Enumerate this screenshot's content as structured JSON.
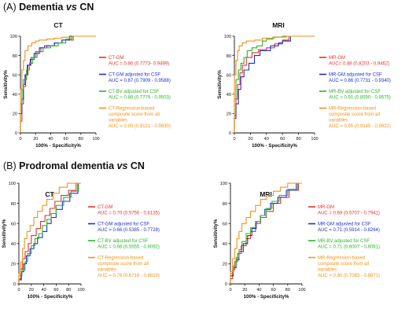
{
  "sections": [
    {
      "paren": "(A)",
      "lead": "Dementia",
      "vs": "vs",
      "tail": "CN"
    },
    {
      "paren": "(B)",
      "lead": "Prodromal dementia",
      "vs": "vs",
      "tail": "CN"
    }
  ],
  "colors": {
    "red": "#e8332a",
    "blue": "#1f2fd0",
    "green": "#2bb52b",
    "orange": "#f39214"
  },
  "chart_data": [
    {
      "type": "line",
      "title": "CT",
      "xlabel": "100% - Specificity%",
      "ylabel": "Sensitivity%",
      "xlim": [
        0,
        100
      ],
      "ylim": [
        0,
        100
      ],
      "xticks": [
        0,
        20,
        40,
        60,
        80,
        100
      ],
      "yticks": [
        0,
        20,
        40,
        60,
        80,
        100
      ],
      "series": [
        {
          "name": "CT-GM",
          "auc": "AUC = 0.86 (0.7773- 0.9499)",
          "color": "red",
          "x": [
            0,
            0,
            2,
            2,
            4,
            4,
            7,
            7,
            10,
            10,
            14,
            14,
            20,
            20,
            27,
            27,
            35,
            35,
            45,
            45,
            55,
            55,
            70,
            70,
            100
          ],
          "y": [
            0,
            12,
            12,
            30,
            30,
            48,
            48,
            60,
            60,
            70,
            70,
            78,
            78,
            84,
            84,
            88,
            88,
            90,
            90,
            93,
            93,
            96,
            96,
            100,
            100
          ]
        },
        {
          "name": "CT-GM adjusted for CSF",
          "auc": "AUC = 0.87 (0.7909 - 0.9588)",
          "color": "blue",
          "x": [
            0,
            0,
            2,
            2,
            4,
            4,
            6,
            6,
            9,
            9,
            13,
            13,
            18,
            18,
            25,
            25,
            32,
            32,
            45,
            45,
            55,
            55,
            65,
            65,
            100
          ],
          "y": [
            0,
            20,
            20,
            35,
            35,
            50,
            50,
            60,
            60,
            70,
            70,
            76,
            76,
            82,
            82,
            88,
            88,
            90,
            90,
            93,
            93,
            96,
            96,
            100,
            100
          ]
        },
        {
          "name": "CT-BV adjusted for CSF",
          "auc": "AUC = 0.88 (0.7779 - 0.9503)",
          "color": "green",
          "x": [
            0,
            0,
            2,
            2,
            4,
            4,
            8,
            8,
            12,
            12,
            16,
            16,
            22,
            22,
            30,
            30,
            40,
            40,
            50,
            50,
            60,
            60,
            68,
            68,
            100
          ],
          "y": [
            0,
            30,
            30,
            45,
            45,
            55,
            55,
            65,
            65,
            72,
            72,
            78,
            78,
            84,
            84,
            88,
            88,
            90,
            90,
            93,
            93,
            97,
            97,
            100,
            100
          ]
        },
        {
          "name": "CT-Regression-based composite score from all variables",
          "auc": "AUC = 0.95 (0.9121 - 0.9930)",
          "color": "orange",
          "x": [
            0,
            0,
            2,
            2,
            4,
            4,
            6,
            6,
            10,
            10,
            15,
            15,
            20,
            20,
            25,
            25,
            35,
            35,
            45,
            45,
            55,
            55,
            70,
            70,
            100
          ],
          "y": [
            0,
            45,
            45,
            65,
            65,
            75,
            75,
            85,
            85,
            90,
            90,
            93,
            93,
            95,
            95,
            96,
            96,
            97,
            97,
            98,
            98,
            99,
            99,
            100,
            100
          ]
        }
      ]
    },
    {
      "type": "line",
      "title": "MRI",
      "xlabel": "100% - Specificity%",
      "ylabel": "Sensitivity%",
      "xlim": [
        0,
        100
      ],
      "ylim": [
        0,
        100
      ],
      "xticks": [
        0,
        20,
        40,
        60,
        80,
        100
      ],
      "yticks": [
        0,
        20,
        40,
        60,
        80,
        100
      ],
      "series": [
        {
          "name": "MR-GM",
          "auc": "AUC= 0.88 (0.8203 - 0.9462)",
          "color": "red",
          "x": [
            0,
            0,
            2,
            2,
            4,
            4,
            7,
            7,
            10,
            10,
            15,
            15,
            22,
            22,
            30,
            30,
            40,
            40,
            50,
            50,
            60,
            60,
            68,
            68,
            100
          ],
          "y": [
            0,
            18,
            18,
            35,
            35,
            50,
            50,
            62,
            62,
            70,
            70,
            78,
            78,
            83,
            83,
            86,
            86,
            88,
            88,
            92,
            92,
            96,
            96,
            100,
            100
          ]
        },
        {
          "name": "MR-GM adjusted for CSF",
          "auc": "AUC = 0.86 (0.7731 - 0.9340)",
          "color": "blue",
          "x": [
            0,
            0,
            2,
            2,
            5,
            5,
            8,
            8,
            12,
            12,
            18,
            18,
            25,
            25,
            32,
            32,
            45,
            45,
            55,
            55,
            60,
            60,
            70,
            70,
            100
          ],
          "y": [
            0,
            15,
            15,
            30,
            30,
            45,
            45,
            58,
            58,
            65,
            65,
            72,
            72,
            80,
            80,
            85,
            85,
            90,
            90,
            93,
            93,
            95,
            95,
            100,
            100
          ]
        },
        {
          "name": "MR-BV adjusted for CSF",
          "auc": "AUC = 0.91 (0.8590 - 0.9575)",
          "color": "green",
          "x": [
            0,
            0,
            2,
            2,
            5,
            5,
            8,
            8,
            12,
            12,
            16,
            16,
            22,
            22,
            28,
            28,
            35,
            35,
            40,
            40,
            48,
            48,
            60,
            60,
            100
          ],
          "y": [
            0,
            35,
            35,
            55,
            55,
            65,
            65,
            72,
            72,
            78,
            78,
            85,
            85,
            88,
            88,
            90,
            90,
            95,
            95,
            97,
            97,
            99,
            99,
            100,
            100
          ]
        },
        {
          "name": "MR-Regression-based composite score from all variables",
          "auc": "AUC = 0.95 (0.9145 - 0.9922)",
          "color": "orange",
          "x": [
            0,
            0,
            2,
            2,
            4,
            4,
            6,
            6,
            10,
            10,
            15,
            15,
            25,
            25,
            35,
            35,
            50,
            50,
            65,
            65,
            100
          ],
          "y": [
            0,
            60,
            60,
            75,
            75,
            85,
            85,
            90,
            90,
            93,
            93,
            95,
            95,
            96,
            96,
            98,
            98,
            99,
            99,
            100,
            100
          ]
        }
      ]
    },
    {
      "type": "line",
      "title": "CT",
      "xlabel": "100% - Specificity%",
      "ylabel": "Sensitivity%",
      "xlim": [
        0,
        100
      ],
      "ylim": [
        0,
        100
      ],
      "xticks": [
        0,
        20,
        40,
        60,
        80,
        100
      ],
      "yticks": [
        0,
        20,
        40,
        60,
        80,
        100
      ],
      "series": [
        {
          "name": "CT-GM",
          "auc": "AUC = 0.70 (0.5756 - 0.8135)",
          "color": "red",
          "x": [
            0,
            0,
            3,
            3,
            6,
            6,
            10,
            10,
            15,
            15,
            20,
            20,
            28,
            28,
            35,
            35,
            42,
            42,
            50,
            50,
            58,
            58,
            68,
            68,
            80,
            80,
            92,
            92,
            100
          ],
          "y": [
            0,
            5,
            5,
            15,
            15,
            25,
            25,
            32,
            32,
            40,
            40,
            48,
            48,
            55,
            55,
            62,
            62,
            68,
            68,
            75,
            75,
            82,
            82,
            88,
            88,
            93,
            93,
            100,
            100
          ]
        },
        {
          "name": "CT-GM adjusted for CSF",
          "auc": "AUC = 0.66 (0.5385 - 0.7728)",
          "color": "blue",
          "x": [
            0,
            0,
            4,
            4,
            8,
            8,
            12,
            12,
            18,
            18,
            24,
            24,
            30,
            30,
            38,
            38,
            45,
            45,
            52,
            52,
            60,
            60,
            70,
            70,
            82,
            82,
            95,
            95,
            100
          ],
          "y": [
            0,
            4,
            4,
            12,
            12,
            20,
            20,
            28,
            28,
            35,
            35,
            40,
            40,
            46,
            46,
            52,
            52,
            60,
            60,
            66,
            66,
            74,
            74,
            82,
            82,
            90,
            90,
            100,
            100
          ]
        },
        {
          "name": "CT-BV adjusted for CSF",
          "auc": "AUC = 0.68 (0.5555 - 0.8092)",
          "color": "green",
          "x": [
            0,
            0,
            5,
            5,
            10,
            10,
            14,
            14,
            20,
            20,
            26,
            26,
            32,
            32,
            38,
            38,
            45,
            45,
            52,
            52,
            60,
            60,
            72,
            72,
            84,
            84,
            96,
            96,
            100
          ],
          "y": [
            0,
            8,
            8,
            14,
            14,
            22,
            22,
            30,
            30,
            38,
            38,
            45,
            45,
            50,
            50,
            58,
            58,
            64,
            64,
            70,
            70,
            78,
            78,
            86,
            86,
            92,
            92,
            100,
            100
          ]
        },
        {
          "name": "CT-Regression-based composite score from all variables",
          "auc": "AUC = 0.78 (0.6718 - 0.8819)",
          "color": "orange",
          "x": [
            0,
            0,
            3,
            3,
            6,
            6,
            9,
            9,
            13,
            13,
            18,
            18,
            24,
            24,
            30,
            30,
            38,
            38,
            45,
            45,
            55,
            55,
            65,
            65,
            78,
            78,
            100
          ],
          "y": [
            0,
            10,
            10,
            22,
            22,
            35,
            35,
            45,
            45,
            52,
            52,
            58,
            58,
            66,
            66,
            72,
            72,
            78,
            78,
            84,
            84,
            90,
            90,
            96,
            96,
            100,
            100
          ]
        }
      ]
    },
    {
      "type": "line",
      "title": "MRI",
      "xlabel": "100% - Specificity%",
      "ylabel": "Sensitivity%",
      "xlim": [
        0,
        100
      ],
      "ylim": [
        0,
        100
      ],
      "xticks": [
        0,
        20,
        40,
        60,
        80,
        100
      ],
      "yticks": [
        0,
        20,
        40,
        60,
        80,
        100
      ],
      "series": [
        {
          "name": "MR-GM",
          "auc": "AUC = 0.69 (0.5707 - 0.7941)",
          "color": "red",
          "x": [
            0,
            0,
            3,
            3,
            6,
            6,
            10,
            10,
            15,
            15,
            22,
            22,
            28,
            28,
            35,
            35,
            42,
            42,
            50,
            50,
            60,
            60,
            70,
            70,
            82,
            82,
            95,
            95,
            100
          ],
          "y": [
            0,
            5,
            5,
            14,
            14,
            22,
            22,
            30,
            30,
            38,
            38,
            45,
            45,
            52,
            52,
            60,
            60,
            66,
            66,
            72,
            72,
            80,
            80,
            86,
            86,
            93,
            93,
            100,
            100
          ]
        },
        {
          "name": "MR-GM adjusted for CSF",
          "auc": "AUC = 0.71 (0.5914 - 0.8264)",
          "color": "blue",
          "x": [
            0,
            0,
            4,
            4,
            8,
            8,
            12,
            12,
            18,
            18,
            24,
            24,
            30,
            30,
            36,
            36,
            42,
            42,
            48,
            48,
            56,
            56,
            66,
            66,
            78,
            78,
            92,
            92,
            100
          ],
          "y": [
            0,
            8,
            8,
            16,
            16,
            24,
            24,
            32,
            32,
            40,
            40,
            48,
            48,
            55,
            55,
            62,
            62,
            68,
            68,
            74,
            74,
            80,
            80,
            86,
            86,
            93,
            93,
            100,
            100
          ]
        },
        {
          "name": "MR-BV adjusted for CSF",
          "auc": "AUC = 0.71 (0.6007 - 0.8081)",
          "color": "green",
          "x": [
            0,
            0,
            4,
            4,
            8,
            8,
            12,
            12,
            16,
            16,
            22,
            22,
            28,
            28,
            35,
            35,
            42,
            42,
            50,
            50,
            58,
            58,
            68,
            68,
            80,
            80,
            94,
            94,
            100
          ],
          "y": [
            0,
            10,
            10,
            18,
            18,
            26,
            26,
            34,
            34,
            42,
            42,
            50,
            50,
            56,
            56,
            62,
            62,
            68,
            68,
            75,
            75,
            82,
            82,
            88,
            88,
            94,
            94,
            100,
            100
          ]
        },
        {
          "name": "MR-Regression-based composite score from all variables",
          "auc": "AUC = 0.80 (0.7083 - 0.8871)",
          "color": "orange",
          "x": [
            0,
            0,
            3,
            3,
            6,
            6,
            9,
            9,
            12,
            12,
            16,
            16,
            22,
            22,
            28,
            28,
            35,
            35,
            42,
            42,
            50,
            50,
            60,
            60,
            70,
            70,
            80,
            80,
            100
          ],
          "y": [
            0,
            12,
            12,
            25,
            25,
            35,
            35,
            45,
            45,
            52,
            52,
            60,
            60,
            66,
            66,
            72,
            72,
            78,
            78,
            84,
            84,
            88,
            88,
            92,
            92,
            96,
            96,
            100,
            100
          ]
        }
      ]
    }
  ]
}
